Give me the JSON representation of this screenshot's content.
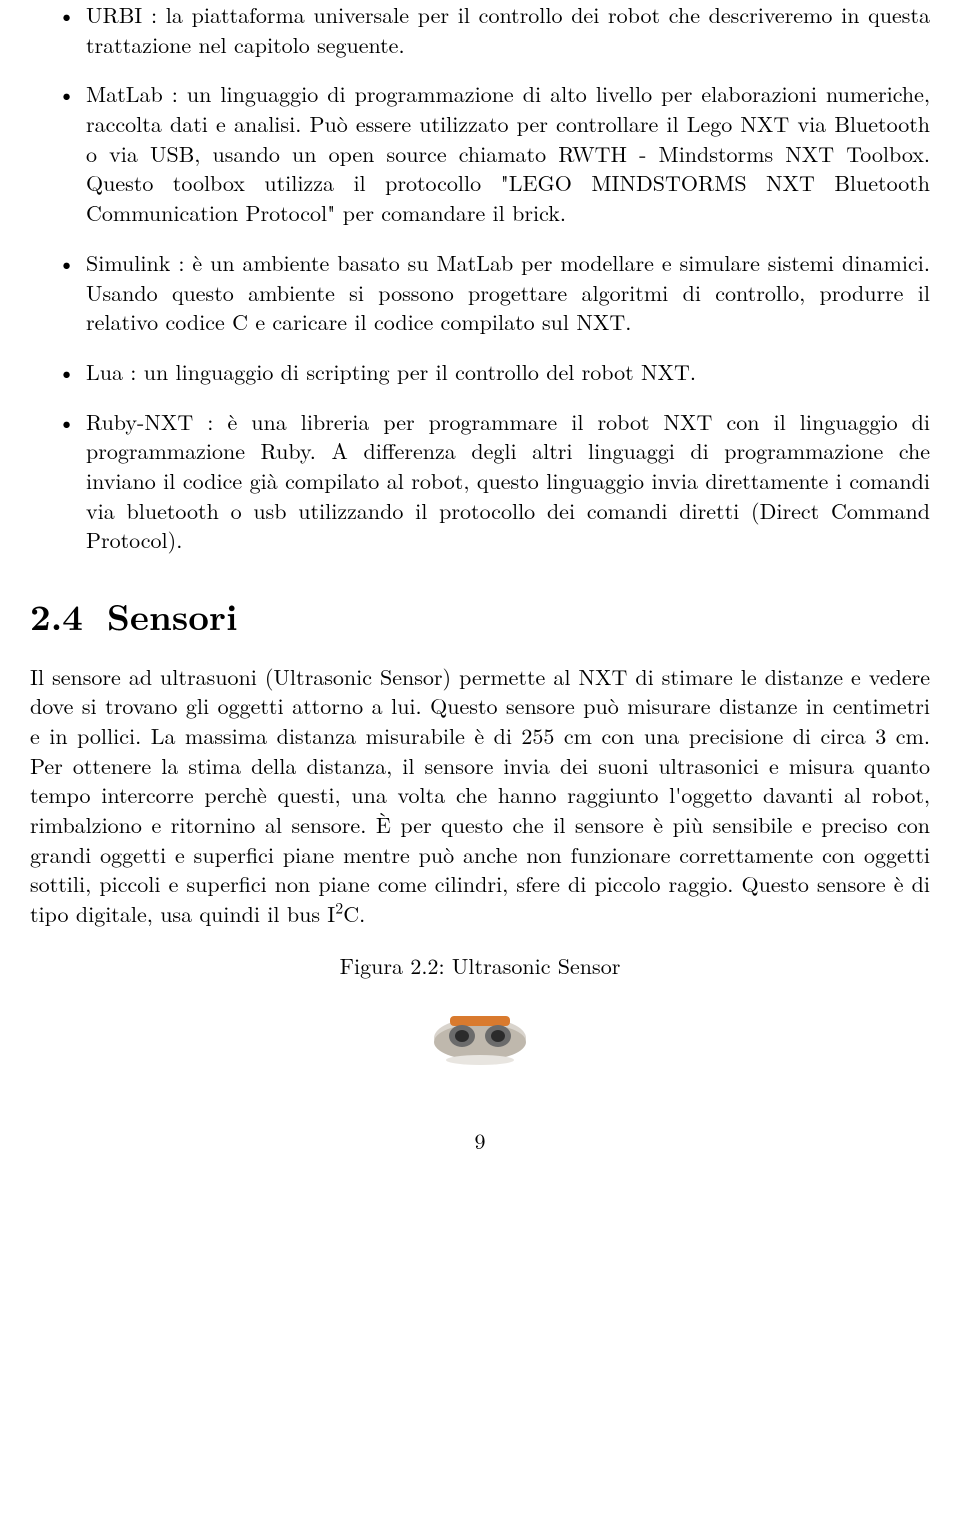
{
  "bullets": [
    "URBI : la piattaforma universale per il controllo dei robot che descriveremo in questa trattazione nel capitolo seguente.",
    "MatLab : un linguaggio di programmazione di alto livello per elaborazioni numeriche, raccolta dati e analisi. Può essere utilizzato per controllare il Lego NXT via Bluetooth o via USB, usando un open source chiamato RWTH - Mindstorms NXT Toolbox. Questo toolbox utilizza il protocollo \"LEGO MINDSTORMS NXT Bluetooth Communication Protocol\" per comandare il brick.",
    "Simulink : è un ambiente basato su MatLab per modellare e simulare sistemi dinamici. Usando questo ambiente si possono progettare algoritmi di controllo, produrre il relativo codice C e caricare il codice compilato sul NXT.",
    "Lua : un linguaggio di scripting per il controllo del robot NXT.",
    "Ruby-NXT : è una libreria per programmare il robot NXT con il linguaggio di programmazione Ruby. A differenza degli altri linguaggi di programmazione che inviano il codice già compilato al robot, questo linguaggio invia direttamente i comandi via bluetooth o usb utilizzando il protocollo dei comandi diretti (Direct Command Protocol)."
  ],
  "section": {
    "number": "2.4",
    "title": "Sensori"
  },
  "paragraph_html": "Il sensore ad ultrasuoni (Ultrasonic Sensor) permette al NXT di stimare le distanze e vedere dove si trovano gli oggetti attorno a lui. Questo sensore può misurare distanze in centimetri e in pollici. La massima distanza misurabile è di 255 cm con una precisione di circa 3 cm. Per ottenere la stima della distanza, il sensore invia dei suoni ultrasonici e misura quanto tempo intercorre perchè questi, una volta che hanno raggiunto l'oggetto davanti al robot, rimbalziono e ritornino al sensore. È per questo che il sensore è più sensibile e preciso con grandi oggetti e superfici piane mentre può anche non funzionare correttamente con oggetti sottili, piccoli e superfici non piane come cilindri, sfere di piccolo raggio. Questo sensore è di tipo digitale, usa quindi il bus I<sup>2</sup>C.",
  "figure": {
    "caption": "Figura 2.2: Ultrasonic Sensor"
  },
  "page_number": "9",
  "figure_colors": {
    "body_light": "#d9d4cd",
    "body_shadow": "#bfb8ad",
    "accent": "#d97a2e",
    "eye_outer": "#6b6b6b",
    "eye_inner": "#2b2b2b"
  }
}
